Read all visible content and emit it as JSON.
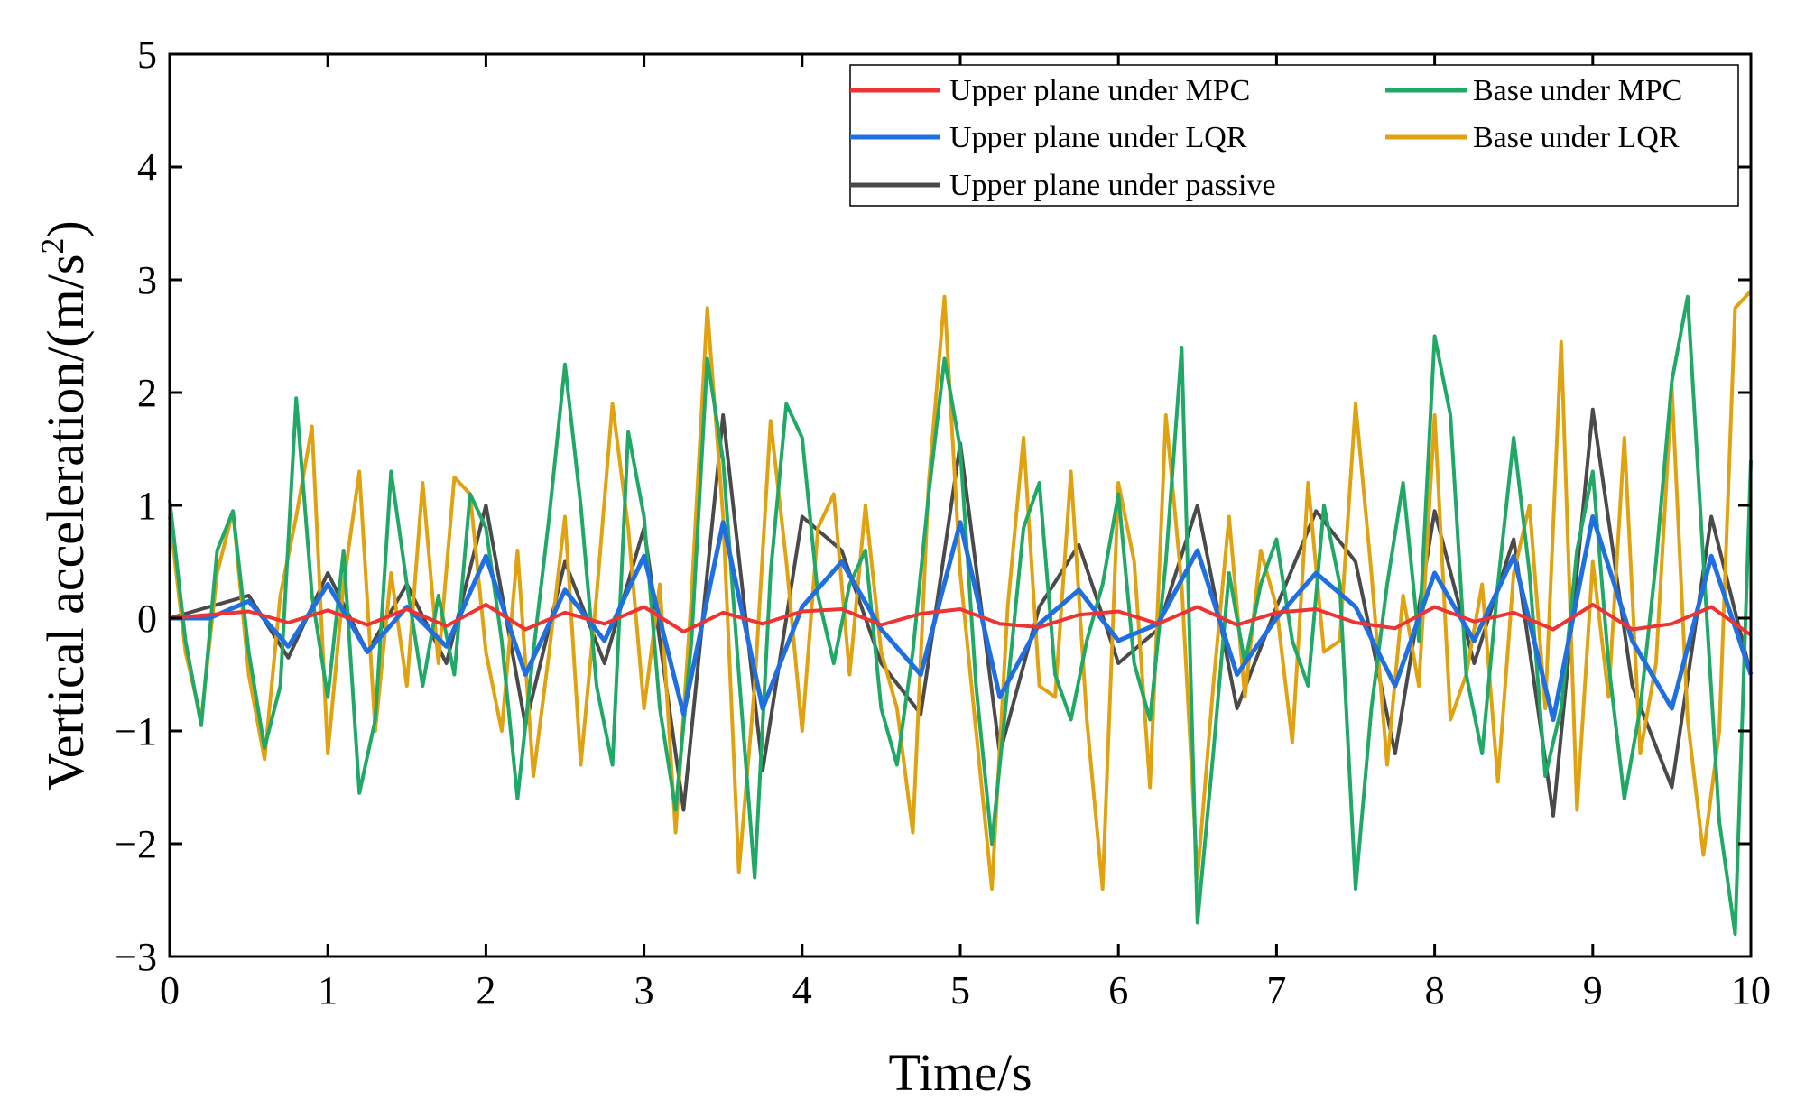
{
  "chart_data": {
    "type": "line",
    "title": "",
    "xlabel": "Time/s",
    "ylabel_main": "Vertical acceleration/(m/s",
    "ylabel_sup": "2",
    "ylabel_close": ")",
    "xlim": [
      0,
      10
    ],
    "ylim": [
      -3,
      5
    ],
    "xticks": [
      "0",
      "1",
      "2",
      "3",
      "4",
      "5",
      "6",
      "7",
      "8",
      "9",
      "10"
    ],
    "yticks": [
      "−3",
      "−2",
      "−1",
      "0",
      "1",
      "2",
      "3",
      "4",
      "5"
    ],
    "grid": false,
    "legend_position": "top-right",
    "series": [
      {
        "name": "Upper plane under MPC",
        "color": "#ee3333",
        "x": [
          0,
          0.25,
          0.5,
          0.75,
          1,
          1.25,
          1.5,
          1.75,
          2,
          2.25,
          2.5,
          2.75,
          3,
          3.25,
          3.5,
          3.75,
          4,
          4.25,
          4.5,
          4.75,
          5,
          5.25,
          5.5,
          5.75,
          6,
          6.25,
          6.5,
          6.75,
          7,
          7.25,
          7.5,
          7.75,
          8,
          8.25,
          8.5,
          8.75,
          9,
          9.25,
          9.5,
          9.75,
          10
        ],
        "values": [
          0,
          0.03,
          0.06,
          -0.04,
          0.07,
          -0.06,
          0.08,
          -0.07,
          0.12,
          -0.1,
          0.05,
          -0.05,
          0.1,
          -0.12,
          0.05,
          -0.05,
          0.06,
          0.08,
          -0.06,
          0.04,
          0.08,
          -0.05,
          -0.08,
          0.03,
          0.06,
          -0.05,
          0.1,
          -0.06,
          0.05,
          0.08,
          -0.04,
          -0.09,
          0.1,
          -0.03,
          0.05,
          -0.1,
          0.12,
          -0.1,
          -0.05,
          0.1,
          -0.15
        ]
      },
      {
        "name": "Base under MPC",
        "color": "#1fa866",
        "x": [
          0,
          0.1,
          0.2,
          0.3,
          0.4,
          0.5,
          0.6,
          0.7,
          0.8,
          0.9,
          1,
          1.1,
          1.2,
          1.3,
          1.4,
          1.5,
          1.6,
          1.7,
          1.8,
          1.9,
          2,
          2.1,
          2.2,
          2.3,
          2.4,
          2.5,
          2.6,
          2.7,
          2.8,
          2.9,
          3,
          3.1,
          3.2,
          3.3,
          3.4,
          3.5,
          3.6,
          3.7,
          3.8,
          3.9,
          4,
          4.1,
          4.2,
          4.3,
          4.4,
          4.5,
          4.6,
          4.7,
          4.8,
          4.9,
          5,
          5.1,
          5.2,
          5.3,
          5.4,
          5.5,
          5.6,
          5.7,
          5.8,
          5.9,
          6,
          6.1,
          6.2,
          6.3,
          6.4,
          6.5,
          6.6,
          6.7,
          6.8,
          6.9,
          7,
          7.1,
          7.2,
          7.3,
          7.4,
          7.5,
          7.6,
          7.7,
          7.8,
          7.9,
          8,
          8.1,
          8.2,
          8.3,
          8.4,
          8.5,
          8.6,
          8.7,
          8.8,
          8.9,
          9,
          9.1,
          9.2,
          9.3,
          9.4,
          9.5,
          9.6,
          9.7,
          9.8,
          9.9,
          10
        ],
        "values": [
          1.05,
          -0.2,
          -0.95,
          0.6,
          0.95,
          -0.3,
          -1.15,
          -0.6,
          1.95,
          0.2,
          -0.7,
          0.6,
          -1.55,
          -0.9,
          1.3,
          0.3,
          -0.6,
          0.2,
          -0.5,
          1.1,
          0.8,
          -0.2,
          -1.6,
          -0.3,
          0.9,
          2.25,
          1.0,
          -0.6,
          -1.3,
          1.65,
          0.9,
          -0.8,
          -1.7,
          -0.2,
          2.3,
          1.4,
          -0.5,
          -2.3,
          0.4,
          1.9,
          1.6,
          0.2,
          -0.4,
          0.3,
          0.6,
          -0.8,
          -1.3,
          -0.3,
          1.1,
          2.3,
          1.5,
          -0.6,
          -2.0,
          -0.6,
          0.8,
          1.2,
          -0.5,
          -0.9,
          -0.2,
          0.3,
          1.1,
          -0.4,
          -0.9,
          0.5,
          2.4,
          -2.7,
          -1.2,
          0.4,
          -0.4,
          0.3,
          0.7,
          -0.2,
          -0.6,
          1.0,
          0.3,
          -2.4,
          -0.8,
          0.3,
          1.2,
          -0.2,
          2.5,
          1.8,
          -0.5,
          -1.2,
          0.3,
          1.6,
          0.4,
          -1.4,
          -0.8,
          0.6,
          1.3,
          -0.4,
          -1.6,
          -0.8,
          0.5,
          2.1,
          2.85,
          0.5,
          -1.8,
          -2.8,
          1.4
        ]
      },
      {
        "name": "Upper plane under LQR",
        "color": "#1f6fe0",
        "x": [
          0,
          0.25,
          0.5,
          0.75,
          1,
          1.25,
          1.5,
          1.75,
          2,
          2.25,
          2.5,
          2.75,
          3,
          3.25,
          3.5,
          3.75,
          4,
          4.25,
          4.5,
          4.75,
          5,
          5.25,
          5.5,
          5.75,
          6,
          6.25,
          6.5,
          6.75,
          7,
          7.25,
          7.5,
          7.75,
          8,
          8.25,
          8.5,
          8.75,
          9,
          9.25,
          9.5,
          9.75,
          10
        ],
        "values": [
          0,
          0,
          0.15,
          -0.25,
          0.3,
          -0.3,
          0.1,
          -0.25,
          0.55,
          -0.5,
          0.25,
          -0.2,
          0.55,
          -0.85,
          0.85,
          -0.8,
          0.1,
          0.5,
          -0.1,
          -0.5,
          0.85,
          -0.7,
          -0.05,
          0.25,
          -0.2,
          -0.05,
          0.6,
          -0.5,
          0.0,
          0.4,
          0.1,
          -0.6,
          0.4,
          -0.2,
          0.55,
          -0.9,
          0.9,
          -0.2,
          -0.8,
          0.55,
          -0.5
        ]
      },
      {
        "name": "Base under LQR",
        "color": "#e0a210",
        "x": [
          0,
          0.1,
          0.2,
          0.3,
          0.4,
          0.5,
          0.6,
          0.7,
          0.8,
          0.9,
          1,
          1.1,
          1.2,
          1.3,
          1.4,
          1.5,
          1.6,
          1.7,
          1.8,
          1.9,
          2,
          2.1,
          2.2,
          2.3,
          2.4,
          2.5,
          2.6,
          2.7,
          2.8,
          2.9,
          3,
          3.1,
          3.2,
          3.3,
          3.4,
          3.5,
          3.6,
          3.7,
          3.8,
          3.9,
          4,
          4.1,
          4.2,
          4.3,
          4.4,
          4.5,
          4.6,
          4.7,
          4.8,
          4.9,
          5,
          5.1,
          5.2,
          5.3,
          5.4,
          5.5,
          5.6,
          5.7,
          5.8,
          5.9,
          6,
          6.1,
          6.2,
          6.3,
          6.4,
          6.5,
          6.6,
          6.7,
          6.8,
          6.9,
          7,
          7.1,
          7.2,
          7.3,
          7.4,
          7.5,
          7.6,
          7.7,
          7.8,
          7.9,
          8,
          8.1,
          8.2,
          8.3,
          8.4,
          8.5,
          8.6,
          8.7,
          8.8,
          8.9,
          9,
          9.1,
          9.2,
          9.3,
          9.4,
          9.5,
          9.6,
          9.7,
          9.8,
          9.9,
          10
        ],
        "values": [
          0.9,
          -0.3,
          -0.9,
          0.4,
          0.95,
          -0.5,
          -1.25,
          0.2,
          0.9,
          1.7,
          -1.2,
          0.3,
          1.3,
          -1.0,
          0.4,
          -0.6,
          1.2,
          -0.4,
          1.25,
          1.1,
          -0.3,
          -1.0,
          0.6,
          -1.4,
          -0.3,
          0.9,
          -1.3,
          0.2,
          1.9,
          0.8,
          -0.8,
          0.3,
          -1.9,
          0.2,
          2.75,
          0.9,
          -2.25,
          -0.6,
          1.75,
          0.5,
          -1.0,
          0.8,
          1.1,
          -0.5,
          1.0,
          -0.3,
          -0.8,
          -1.9,
          1.2,
          2.85,
          0.4,
          -1.0,
          -2.4,
          0.1,
          1.6,
          -0.6,
          -0.7,
          1.3,
          -0.9,
          -2.4,
          1.2,
          0.5,
          -1.5,
          1.8,
          0.3,
          -2.3,
          -0.6,
          0.9,
          -0.7,
          0.6,
          0.1,
          -1.1,
          1.2,
          -0.3,
          -0.2,
          1.9,
          0.4,
          -1.3,
          0.2,
          -0.6,
          1.8,
          -0.9,
          -0.5,
          0.3,
          -1.45,
          0.4,
          1.0,
          -0.8,
          2.45,
          -1.7,
          0.5,
          -0.7,
          1.6,
          -1.2,
          -0.4,
          2.05,
          -0.9,
          -2.1,
          -1.0,
          2.75,
          2.9
        ]
      },
      {
        "name": "Upper plane under passive",
        "color": "#4a4a4a",
        "x": [
          0,
          0.25,
          0.5,
          0.75,
          1,
          1.25,
          1.5,
          1.75,
          2,
          2.25,
          2.5,
          2.75,
          3,
          3.25,
          3.5,
          3.75,
          4,
          4.25,
          4.5,
          4.75,
          5,
          5.25,
          5.5,
          5.75,
          6,
          6.25,
          6.5,
          6.75,
          7,
          7.25,
          7.5,
          7.75,
          8,
          8.25,
          8.5,
          8.75,
          9,
          9.25,
          9.5,
          9.75,
          10
        ],
        "values": [
          0,
          0.1,
          0.2,
          -0.35,
          0.4,
          -0.3,
          0.3,
          -0.4,
          1.0,
          -0.95,
          0.5,
          -0.4,
          0.8,
          -1.7,
          1.8,
          -1.35,
          0.9,
          0.6,
          -0.4,
          -0.85,
          1.55,
          -1.2,
          0.1,
          0.65,
          -0.4,
          -0.1,
          1.0,
          -0.8,
          0.1,
          0.95,
          0.5,
          -1.2,
          0.95,
          -0.4,
          0.7,
          -1.75,
          1.85,
          -0.6,
          -1.5,
          0.9,
          -0.5
        ]
      }
    ]
  }
}
